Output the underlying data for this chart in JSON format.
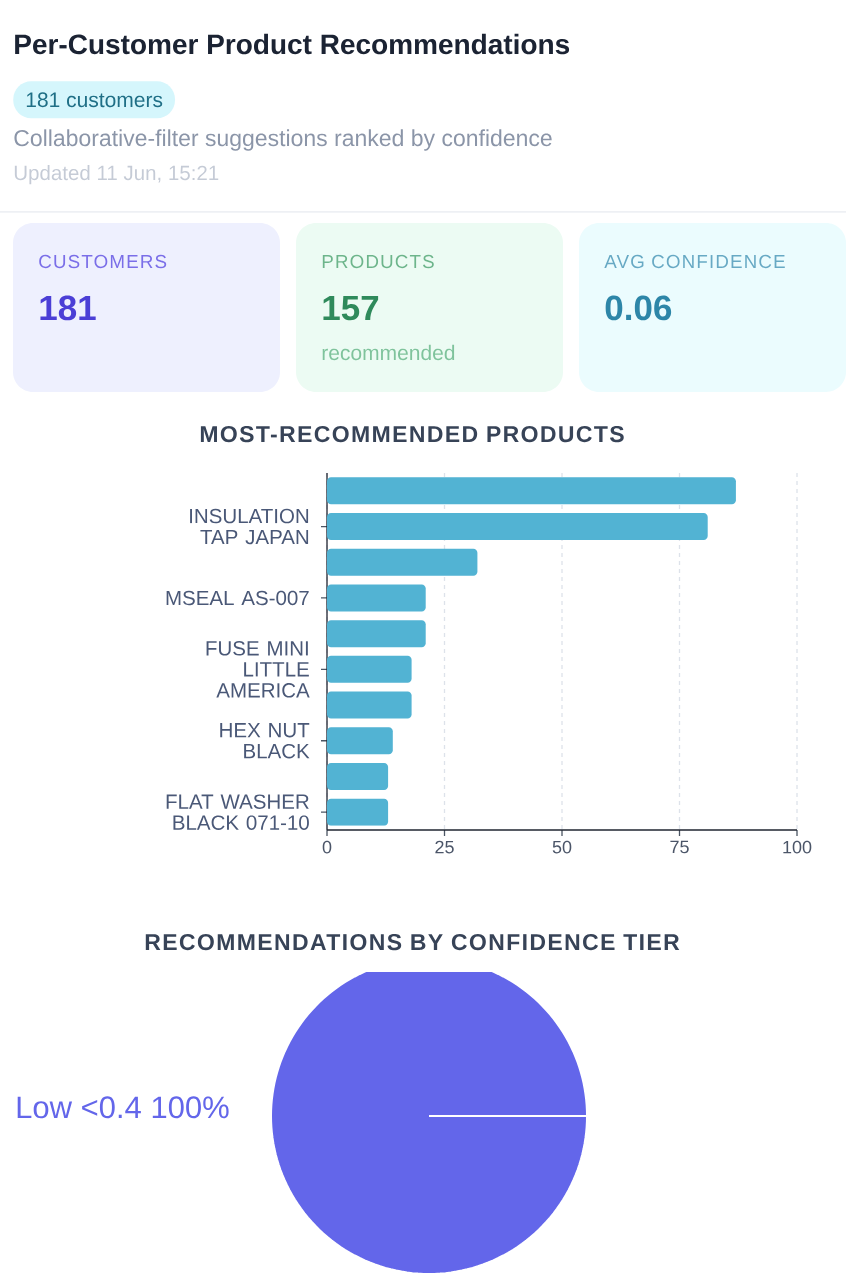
{
  "chart_data": [
    {
      "type": "other",
      "title": "Per-Customer Product Recommendations",
      "subtitle": "Collaborative-filter suggestions ranked by confidence",
      "annotations": [
        "181 customers",
        "Updated 11 Jun, 15:21"
      ]
    },
    {
      "type": "other",
      "title": "CUSTOMERS",
      "annotations": [
        "181"
      ]
    },
    {
      "type": "other",
      "title": "PRODUCTS",
      "annotations": [
        "157",
        "recommended"
      ]
    },
    {
      "type": "other",
      "title": "AVG CONFIDENCE",
      "annotations": [
        "0.06"
      ]
    },
    {
      "type": "bar",
      "title": "MOST-RECOMMENDED PRODUCTS",
      "orientation": "horizontal",
      "categories": [
        null,
        "INSULATION TAP JAPAN",
        null,
        "MSEAL AS-007",
        null,
        "FUSE MINI LITTLE AMERICA",
        null,
        "HEX NUT BLACK",
        null,
        "FLAT WASHER BLACK 071-10"
      ],
      "values": [
        87,
        81,
        32,
        21,
        21,
        18,
        18,
        14,
        13,
        13
      ],
      "color": "#52b3d3",
      "xlim": [
        0,
        100
      ],
      "xticks": [
        0,
        25,
        50,
        75,
        100
      ],
      "grid": "x"
    },
    {
      "type": "pie",
      "title": "RECOMMENDATIONS BY CONFIDENCE TIER",
      "categories": [
        "Low <0.4"
      ],
      "values": [
        100
      ],
      "colors": [
        "#6366ea"
      ],
      "value_labels": [
        "100%"
      ]
    }
  ]
}
